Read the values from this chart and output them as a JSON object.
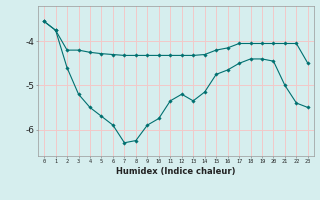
{
  "xlabel": "Humidex (Indice chaleur)",
  "ylabel": "",
  "background_color": "#d6eeee",
  "grid_color": "#f2c8c8",
  "line_color": "#007070",
  "x_ticks": [
    0,
    1,
    2,
    3,
    4,
    5,
    6,
    7,
    8,
    9,
    10,
    11,
    12,
    13,
    14,
    15,
    16,
    17,
    18,
    19,
    20,
    21,
    22,
    23
  ],
  "y_ticks": [
    -4,
    -5,
    -6
  ],
  "ylim": [
    -6.6,
    -3.2
  ],
  "xlim": [
    -0.5,
    23.5
  ],
  "line1_x": [
    0,
    1,
    2,
    3,
    4,
    5,
    6,
    7,
    8,
    9,
    10,
    11,
    12,
    13,
    14,
    15,
    16,
    17,
    18,
    19,
    20,
    21,
    22,
    23
  ],
  "line1_y": [
    -3.55,
    -3.75,
    -4.2,
    -4.2,
    -4.25,
    -4.28,
    -4.3,
    -4.32,
    -4.32,
    -4.32,
    -4.32,
    -4.32,
    -4.32,
    -4.32,
    -4.3,
    -4.2,
    -4.15,
    -4.05,
    -4.05,
    -4.05,
    -4.05,
    -4.05,
    -4.05,
    -4.5
  ],
  "line2_x": [
    0,
    1,
    2,
    3,
    4,
    5,
    6,
    7,
    8,
    9,
    10,
    11,
    12,
    13,
    14,
    15,
    16,
    17,
    18,
    19,
    20,
    21,
    22,
    23
  ],
  "line2_y": [
    -3.55,
    -3.75,
    -4.6,
    -5.2,
    -5.5,
    -5.7,
    -5.9,
    -6.3,
    -6.25,
    -5.9,
    -5.75,
    -5.35,
    -5.2,
    -5.35,
    -5.15,
    -4.75,
    -4.65,
    -4.5,
    -4.4,
    -4.4,
    -4.45,
    -5.0,
    -5.4,
    -5.5
  ]
}
